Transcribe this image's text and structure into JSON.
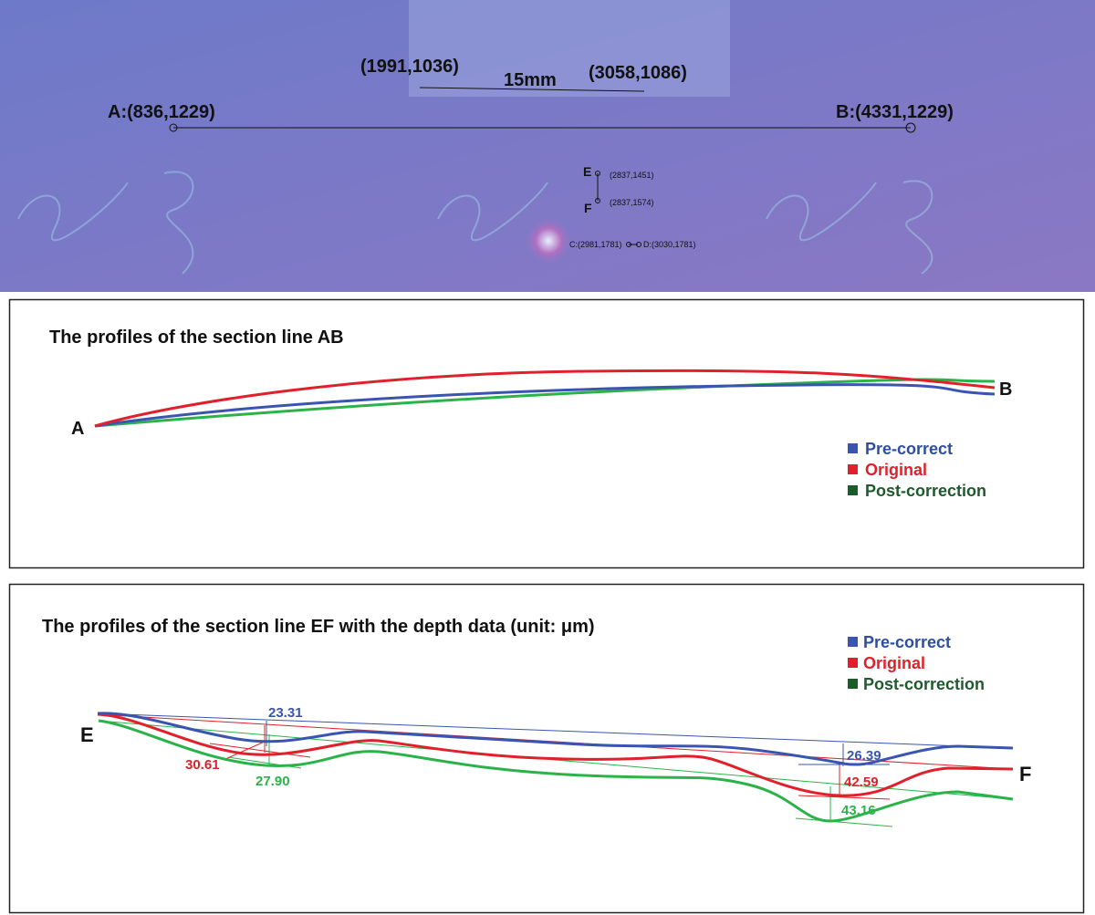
{
  "photo": {
    "scale": {
      "start": "(1991,1036)",
      "length": "15mm",
      "end": "(3058,1086)"
    },
    "point_a": "A:(836,1229)",
    "point_b": "B:(4331,1229)",
    "point_e": {
      "letter": "E",
      "coords": "(2837,1451)"
    },
    "point_f": {
      "letter": "F",
      "coords": "(2837,1574)"
    },
    "point_c": "C:(2981,1781)",
    "point_d": "D:(3030,1781)"
  },
  "panel_ab": {
    "title": "The profiles of the section line AB",
    "start_label": "A",
    "end_label": "B",
    "legend": [
      "Pre-correct",
      "Original",
      "Post-correction"
    ]
  },
  "panel_ef": {
    "title": "The profiles of the section line EF with the depth data (unit: μm)",
    "start_label": "E",
    "end_label": "F",
    "legend": [
      "Pre-correct",
      "Original",
      "Post-correction"
    ],
    "depths": [
      "23.31",
      "30.61",
      "27.90",
      "26.39",
      "42.59",
      "43.16"
    ]
  }
}
